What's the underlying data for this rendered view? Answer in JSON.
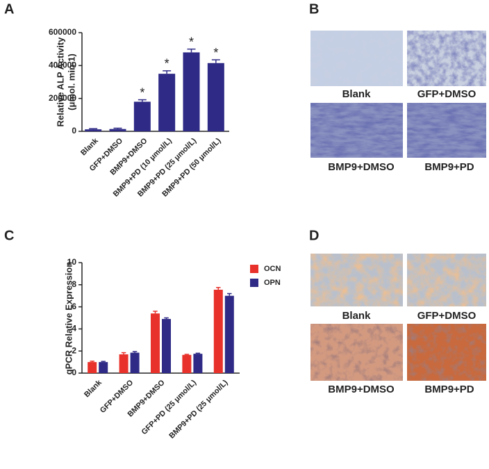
{
  "panels": {
    "labels": [
      "A",
      "B",
      "C",
      "D"
    ]
  },
  "images": {
    "B": {
      "captions": [
        "Blank",
        "GFP+DMSO",
        "BMP9+DMSO",
        "BMP9+PD"
      ]
    },
    "D": {
      "captions": [
        "Blank",
        "GFP+DMSO",
        "BMP9+DMSO",
        "BMP9+PD"
      ]
    }
  },
  "chart_data": [
    {
      "type": "bar",
      "ylabel": "Relative ALP Activity",
      "ylabel_unit": "(μmol. min-1)",
      "categories": [
        "Blank",
        "GFP+DMSO",
        "BMP9+DMSO",
        "BMP9+PD (10 μmol/L)",
        "BMP9+PD (25 μmol/L)",
        "BMP9+PD (50 μmol/L)"
      ],
      "values": [
        12000,
        14000,
        180000,
        350000,
        480000,
        415000
      ],
      "errors": [
        4000,
        5000,
        12000,
        18000,
        20000,
        20000
      ],
      "significance": [
        null,
        null,
        "*",
        "*",
        "*",
        "*"
      ],
      "color": "#2e2a86",
      "ylim": [
        0,
        600000
      ],
      "yticks": [
        0,
        200000,
        400000,
        600000
      ]
    },
    {
      "type": "bar",
      "ylabel": "qPCR Relative Expression",
      "categories": [
        "Blank",
        "GFP+DMSO",
        "BMP9+DMSO",
        "GFP+PD (25 μmol/L)",
        "BMP9+PD (25 μmol/L)"
      ],
      "series": [
        {
          "name": "OCN",
          "color": "#e8312a",
          "values": [
            1.0,
            1.7,
            5.4,
            1.65,
            7.55
          ],
          "errors": [
            0.08,
            0.15,
            0.2,
            0.05,
            0.2
          ]
        },
        {
          "name": "OPN",
          "color": "#2e2a86",
          "values": [
            1.0,
            1.85,
            4.9,
            1.75,
            7.0
          ],
          "errors": [
            0.06,
            0.1,
            0.1,
            0.05,
            0.2
          ]
        }
      ],
      "ylim": [
        0,
        10
      ],
      "yticks": [
        0,
        2,
        4,
        6,
        8,
        10
      ]
    }
  ]
}
